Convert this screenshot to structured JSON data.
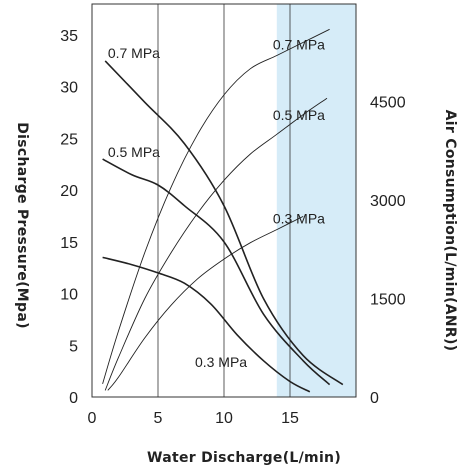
{
  "chart_data": {
    "type": "line",
    "title": "",
    "xlabel": "Water Discharge(L/min)",
    "ylabel": "Discharge Pressure(Mpa)",
    "ylabel_right": "Air Consumption(L/min(ANR))",
    "xlim": [
      0,
      20
    ],
    "ylim": [
      0,
      38
    ],
    "ylim_right": [
      0,
      5985
    ],
    "x_ticks": [
      "0",
      "5",
      "10",
      "15"
    ],
    "y_ticks": [
      "0",
      "5",
      "10",
      "15",
      "20",
      "25",
      "30",
      "35"
    ],
    "y_ticks_right": [
      "0",
      "1500",
      "3000",
      "4500"
    ],
    "grid": "vertical",
    "highlight_x_range": [
      14.0,
      20
    ],
    "highlight_color": "#d6ecf8",
    "series": [
      {
        "name": "0.7 MPa",
        "axis": "left",
        "label_pos": [
          1.2,
          32.8
        ],
        "x": [
          1.0,
          4.0,
          7.0,
          10.0,
          13.0,
          16.0,
          19.0
        ],
        "y": [
          32.5,
          28.5,
          24.5,
          18.5,
          9.5,
          4.0,
          1.2
        ]
      },
      {
        "name": "0.5 MPa",
        "axis": "left",
        "label_pos": [
          1.2,
          23.2
        ],
        "x": [
          0.8,
          3.0,
          5.0,
          7.0,
          10.0,
          13.0,
          16.0,
          18.0
        ],
        "y": [
          23.0,
          21.5,
          20.5,
          18.5,
          15.0,
          8.0,
          3.5,
          1.2
        ]
      },
      {
        "name": "0.3 MPa",
        "axis": "left",
        "label_pos": [
          7.8,
          2.9
        ],
        "x": [
          0.8,
          3.0,
          5.0,
          7.0,
          9.0,
          11.0,
          13.0,
          15.0,
          16.5
        ],
        "y": [
          13.5,
          12.8,
          12.0,
          11.0,
          9.0,
          6.0,
          3.5,
          1.5,
          0.5
        ]
      },
      {
        "name": "0.7 MPa",
        "axis": "right",
        "label_pos": [
          13.7,
          33.6
        ],
        "x": [
          0.8,
          2.0,
          4.0,
          6.0,
          8.0,
          10.0,
          12.0,
          14.0,
          16.0,
          18.0
        ],
        "y": [
          200,
          1000,
          2200,
          3200,
          4000,
          4600,
          5000,
          5200,
          5400,
          5600
        ]
      },
      {
        "name": "0.5 MPa",
        "axis": "right",
        "label_pos": [
          13.7,
          26.8
        ],
        "x": [
          1.0,
          2.0,
          4.0,
          6.0,
          8.0,
          10.0,
          12.0,
          14.0,
          16.0,
          17.8
        ],
        "y": [
          100,
          600,
          1500,
          2200,
          2800,
          3300,
          3700,
          4000,
          4300,
          4550
        ]
      },
      {
        "name": "0.3 MPa",
        "axis": "right",
        "label_pos": [
          13.7,
          16.8
        ],
        "x": [
          1.2,
          2.0,
          4.0,
          6.0,
          8.0,
          10.0,
          12.0,
          14.0,
          16.0
        ],
        "y": [
          100,
          300,
          900,
          1400,
          1800,
          2100,
          2350,
          2550,
          2750
        ]
      }
    ]
  }
}
